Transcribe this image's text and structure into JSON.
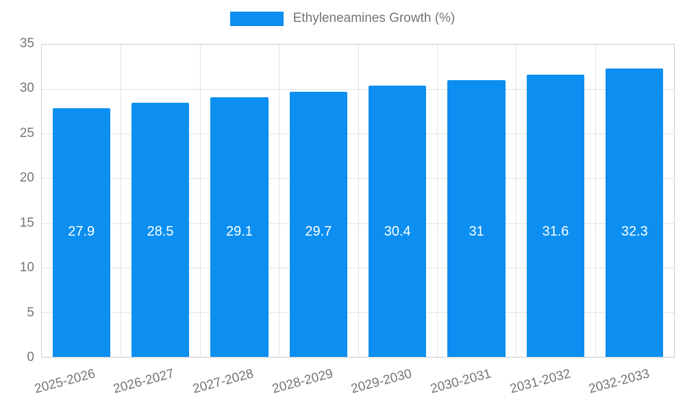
{
  "legend": {
    "label": "Ethyleneamines Growth (%)",
    "swatch_color": "#0c8ff0"
  },
  "chart_data": {
    "type": "bar",
    "title": "Ethyleneamines Growth (%)",
    "categories": [
      "2025-2026",
      "2026-2027",
      "2027-2028",
      "2028-2029",
      "2029-2030",
      "2030-2031",
      "2031-2032",
      "2032-2033"
    ],
    "values": [
      27.9,
      28.5,
      29.1,
      29.7,
      30.4,
      31,
      31.6,
      32.3
    ],
    "series": [
      {
        "name": "Ethyleneamines Growth (%)",
        "values": [
          27.9,
          28.5,
          29.1,
          29.7,
          30.4,
          31,
          31.6,
          32.3
        ]
      }
    ],
    "xlabel": "",
    "ylabel": "",
    "ylim": [
      0,
      35
    ],
    "yticks": [
      0,
      5,
      10,
      15,
      20,
      25,
      30,
      35
    ],
    "grid": true,
    "legend_position": "top",
    "bar_color": "#0c8ff0",
    "value_label_color": "#ffffff",
    "axis_text_color": "#757575"
  }
}
